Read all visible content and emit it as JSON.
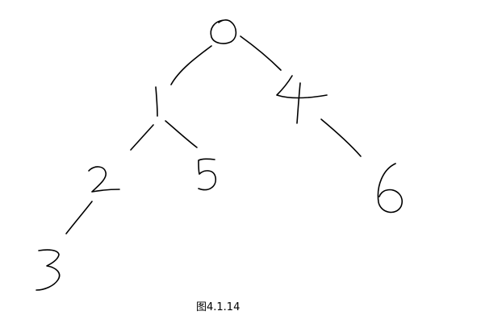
{
  "tree": {
    "nodes": [
      {
        "id": "n0",
        "label": "0"
      },
      {
        "id": "n1",
        "label": "1"
      },
      {
        "id": "n4",
        "label": "4"
      },
      {
        "id": "n2",
        "label": "2"
      },
      {
        "id": "n5",
        "label": "5"
      },
      {
        "id": "n6",
        "label": "6"
      },
      {
        "id": "n3",
        "label": "3"
      }
    ],
    "edges": [
      {
        "from": "0",
        "to": "1"
      },
      {
        "from": "0",
        "to": "4"
      },
      {
        "from": "1",
        "to": "2"
      },
      {
        "from": "1",
        "to": "5"
      },
      {
        "from": "4",
        "to": "6"
      },
      {
        "from": "2",
        "to": "3"
      }
    ]
  },
  "caption": "图4.1.14",
  "colors": {
    "ink": "#000000",
    "background": "#ffffff"
  }
}
